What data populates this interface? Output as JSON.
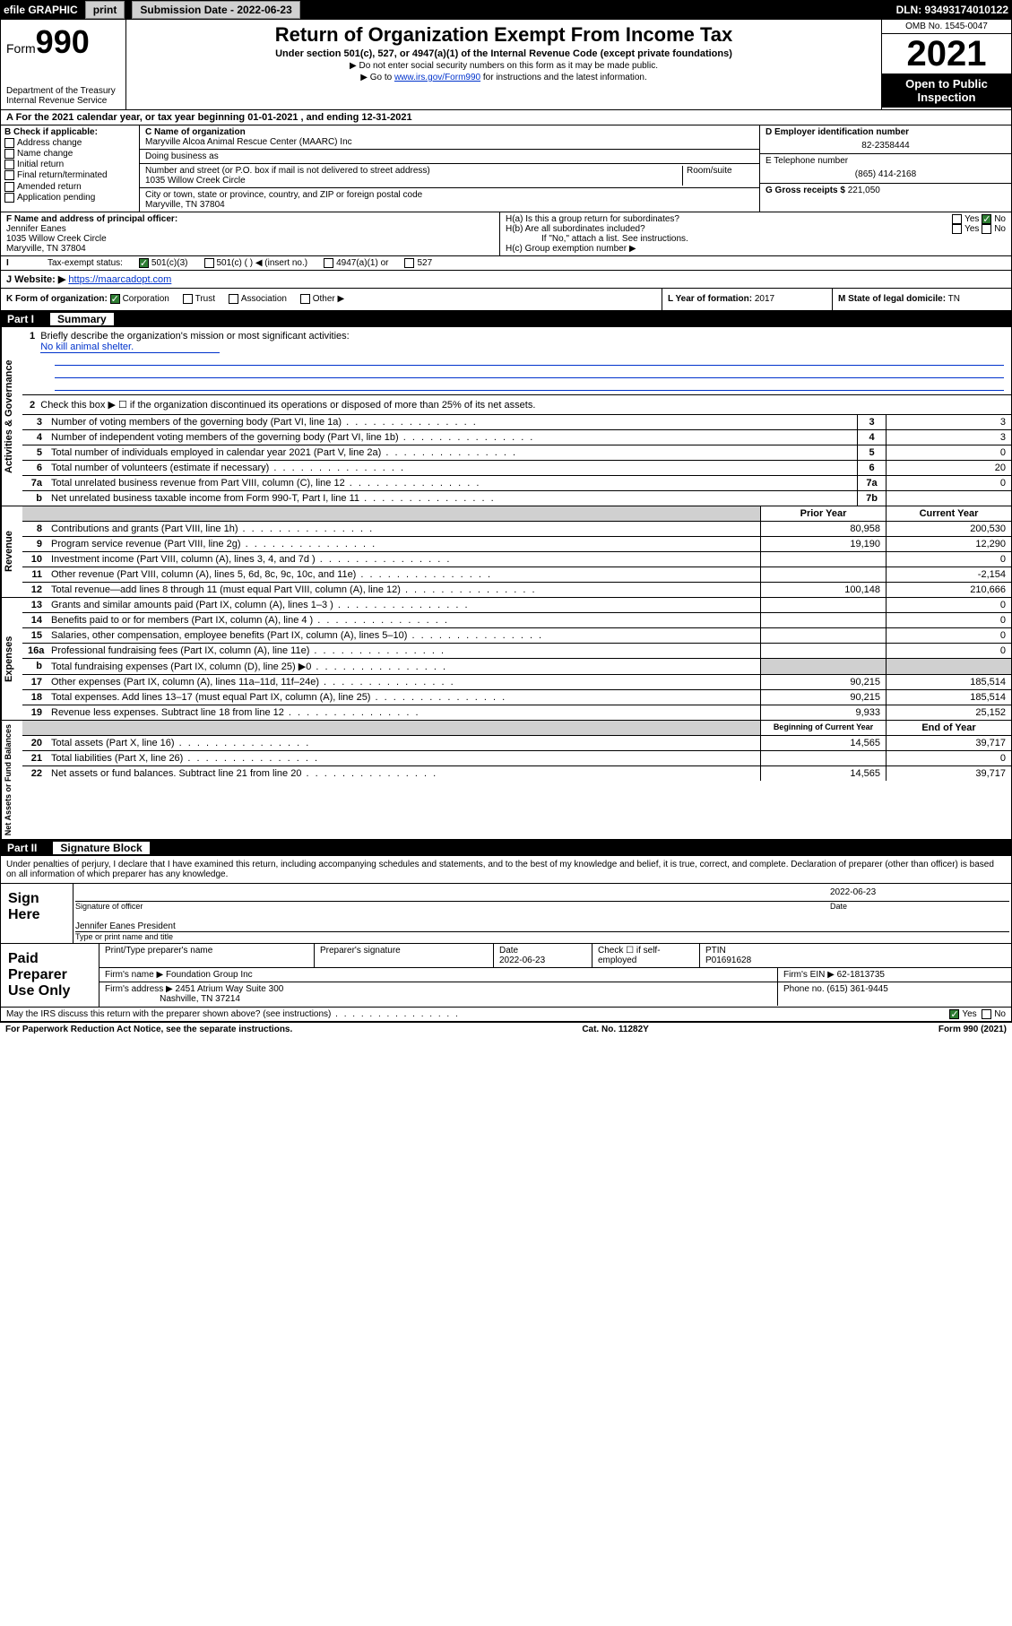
{
  "colors": {
    "black": "#000000",
    "white": "#ffffff",
    "link": "#0033cc",
    "green": "#2e7d32",
    "grey": "#d0d0d0"
  },
  "top_bar": {
    "efile_label": "efile GRAPHIC",
    "print_btn": "print",
    "submission_label": "Submission Date - 2022-06-23",
    "dln": "DLN: 93493174010122"
  },
  "header": {
    "form_word": "Form",
    "form_number": "990",
    "dept": "Department of the Treasury",
    "irs": "Internal Revenue Service",
    "title": "Return of Organization Exempt From Income Tax",
    "subtitle": "Under section 501(c), 527, or 4947(a)(1) of the Internal Revenue Code (except private foundations)",
    "note1": "▶ Do not enter social security numbers on this form as it may be made public.",
    "note2_pre": "▶ Go to ",
    "note2_link": "www.irs.gov/Form990",
    "note2_post": " for instructions and the latest information.",
    "omb": "OMB No. 1545-0047",
    "year": "2021",
    "open_public1": "Open to Public",
    "open_public2": "Inspection"
  },
  "line_a": "A For the 2021 calendar year, or tax year beginning 01-01-2021   , and ending 12-31-2021",
  "box_b": {
    "title": "B Check if applicable:",
    "opts": [
      "Address change",
      "Name change",
      "Initial return",
      "Final return/terminated",
      "Amended return",
      "Application pending"
    ]
  },
  "box_c": {
    "name_label": "C Name of organization",
    "name": "Maryville Alcoa Animal Rescue Center (MAARC) Inc",
    "dba_label": "Doing business as",
    "street_label": "Number and street (or P.O. box if mail is not delivered to street address)",
    "room_label": "Room/suite",
    "street": "1035 Willow Creek Circle",
    "city_label": "City or town, state or province, country, and ZIP or foreign postal code",
    "city": "Maryville, TN  37804"
  },
  "box_d": {
    "label": "D Employer identification number",
    "value": "82-2358444"
  },
  "box_e": {
    "label": "E Telephone number",
    "value": "(865) 414-2168"
  },
  "box_g": {
    "label": "G Gross receipts $",
    "value": "221,050"
  },
  "box_f": {
    "label": "F Name and address of principal officer:",
    "name": "Jennifer Eanes",
    "street": "1035 Willow Creek Circle",
    "city": "Maryville, TN  37804"
  },
  "box_h": {
    "a": "H(a)  Is this a group return for subordinates?",
    "b": "H(b)  Are all subordinates included?",
    "b_note": "If \"No,\" attach a list. See instructions.",
    "c": "H(c)  Group exemption number ▶",
    "yes": "Yes",
    "no": "No"
  },
  "box_i": {
    "label": "Tax-exempt status:",
    "o1": "501(c)(3)",
    "o2": "501(c) (  ) ◀ (insert no.)",
    "o3": "4947(a)(1) or",
    "o4": "527"
  },
  "box_j": {
    "label": "J   Website: ▶",
    "value": "https://maarcadopt.com"
  },
  "box_k": {
    "label": "K Form of organization:",
    "o1": "Corporation",
    "o2": "Trust",
    "o3": "Association",
    "o4": "Other ▶",
    "l_label": "L Year of formation:",
    "l_val": "2017",
    "m_label": "M State of legal domicile:",
    "m_val": "TN"
  },
  "part1": {
    "header_num": "Part I",
    "header_title": "Summary",
    "side1": "Activities & Governance",
    "side2": "Revenue",
    "side3": "Expenses",
    "side4": "Net Assets or Fund Balances",
    "line1_label": "Briefly describe the organization's mission or most significant activities:",
    "line1_value": "No kill animal shelter.",
    "line2": "Check this box ▶ ☐  if the organization discontinued its operations or disposed of more than 25% of its net assets.",
    "rows_gov": [
      {
        "n": "3",
        "desc": "Number of voting members of the governing body (Part VI, line 1a)",
        "box": "3",
        "val": "3"
      },
      {
        "n": "4",
        "desc": "Number of independent voting members of the governing body (Part VI, line 1b)",
        "box": "4",
        "val": "3"
      },
      {
        "n": "5",
        "desc": "Total number of individuals employed in calendar year 2021 (Part V, line 2a)",
        "box": "5",
        "val": "0"
      },
      {
        "n": "6",
        "desc": "Total number of volunteers (estimate if necessary)",
        "box": "6",
        "val": "20"
      },
      {
        "n": "7a",
        "desc": "Total unrelated business revenue from Part VIII, column (C), line 12",
        "box": "7a",
        "val": "0"
      },
      {
        "n": "b",
        "desc": "Net unrelated business taxable income from Form 990-T, Part I, line 11",
        "box": "7b",
        "val": ""
      }
    ],
    "prior_year": "Prior Year",
    "current_year": "Current Year",
    "rows_rev": [
      {
        "n": "8",
        "desc": "Contributions and grants (Part VIII, line 1h)",
        "py": "80,958",
        "cy": "200,530"
      },
      {
        "n": "9",
        "desc": "Program service revenue (Part VIII, line 2g)",
        "py": "19,190",
        "cy": "12,290"
      },
      {
        "n": "10",
        "desc": "Investment income (Part VIII, column (A), lines 3, 4, and 7d )",
        "py": "",
        "cy": "0"
      },
      {
        "n": "11",
        "desc": "Other revenue (Part VIII, column (A), lines 5, 6d, 8c, 9c, 10c, and 11e)",
        "py": "",
        "cy": "-2,154"
      },
      {
        "n": "12",
        "desc": "Total revenue—add lines 8 through 11 (must equal Part VIII, column (A), line 12)",
        "py": "100,148",
        "cy": "210,666"
      }
    ],
    "rows_exp": [
      {
        "n": "13",
        "desc": "Grants and similar amounts paid (Part IX, column (A), lines 1–3 )",
        "py": "",
        "cy": "0"
      },
      {
        "n": "14",
        "desc": "Benefits paid to or for members (Part IX, column (A), line 4 )",
        "py": "",
        "cy": "0"
      },
      {
        "n": "15",
        "desc": "Salaries, other compensation, employee benefits (Part IX, column (A), lines 5–10)",
        "py": "",
        "cy": "0"
      },
      {
        "n": "16a",
        "desc": "Professional fundraising fees (Part IX, column (A), line 11e)",
        "py": "",
        "cy": "0"
      },
      {
        "n": "b",
        "desc": "Total fundraising expenses (Part IX, column (D), line 25) ▶0",
        "py": "grey",
        "cy": "grey"
      },
      {
        "n": "17",
        "desc": "Other expenses (Part IX, column (A), lines 11a–11d, 11f–24e)",
        "py": "90,215",
        "cy": "185,514"
      },
      {
        "n": "18",
        "desc": "Total expenses. Add lines 13–17 (must equal Part IX, column (A), line 25)",
        "py": "90,215",
        "cy": "185,514"
      },
      {
        "n": "19",
        "desc": "Revenue less expenses. Subtract line 18 from line 12",
        "py": "9,933",
        "cy": "25,152"
      }
    ],
    "begin_year": "Beginning of Current Year",
    "end_year": "End of Year",
    "rows_net": [
      {
        "n": "20",
        "desc": "Total assets (Part X, line 16)",
        "py": "14,565",
        "cy": "39,717"
      },
      {
        "n": "21",
        "desc": "Total liabilities (Part X, line 26)",
        "py": "",
        "cy": "0"
      },
      {
        "n": "22",
        "desc": "Net assets or fund balances. Subtract line 21 from line 20",
        "py": "14,565",
        "cy": "39,717"
      }
    ]
  },
  "part2": {
    "header_num": "Part II",
    "header_title": "Signature Block",
    "penalty": "Under penalties of perjury, I declare that I have examined this return, including accompanying schedules and statements, and to the best of my knowledge and belief, it is true, correct, and complete. Declaration of preparer (other than officer) is based on all information of which preparer has any knowledge.",
    "sign_here": "Sign Here",
    "sig_officer": "Signature of officer",
    "date_label": "Date",
    "sig_date": "2022-06-23",
    "officer_name": "Jennifer Eanes  President",
    "type_name": "Type or print name and title",
    "paid_label": "Paid Preparer Use Only",
    "pp_head": [
      "Print/Type preparer's name",
      "Preparer's signature",
      "Date",
      "",
      "PTIN"
    ],
    "pp_date": "2022-06-23",
    "pp_check": "Check ☐ if self-employed",
    "pp_ptin": "P01691628",
    "firm_name_label": "Firm's name    ▶",
    "firm_name": "Foundation Group Inc",
    "firm_ein_label": "Firm's EIN ▶",
    "firm_ein": "62-1813735",
    "firm_addr_label": "Firm's address ▶",
    "firm_addr1": "2451 Atrium Way Suite 300",
    "firm_addr2": "Nashville, TN  37214",
    "phone_label": "Phone no.",
    "phone": "(615) 361-9445",
    "may_irs": "May the IRS discuss this return with the preparer shown above? (see instructions)",
    "yes": "Yes",
    "no": "No"
  },
  "footer": {
    "paperwork": "For Paperwork Reduction Act Notice, see the separate instructions.",
    "cat": "Cat. No. 11282Y",
    "form": "Form 990 (2021)"
  }
}
